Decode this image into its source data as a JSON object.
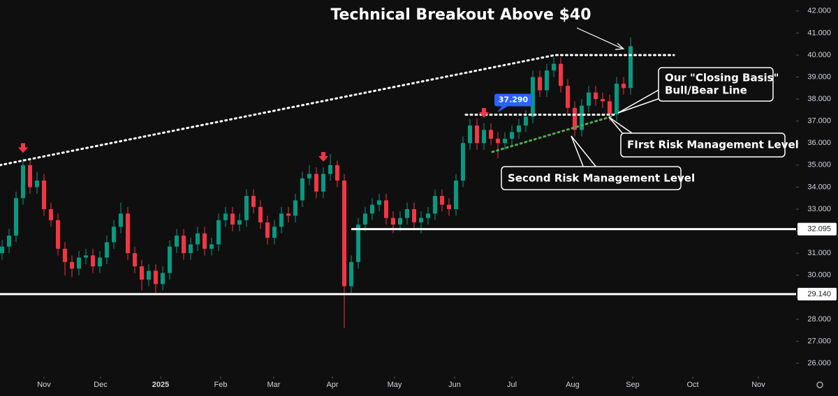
{
  "chart_data": {
    "type": "candlestick",
    "title": "Technical Breakout Above $40",
    "up_color": "#089981",
    "down_color": "#f23645",
    "arrow_color": "#f23645",
    "xlim": [
      -0.3,
      113.7
    ],
    "xticks": [
      {
        "value": 6.0,
        "label": "Nov"
      },
      {
        "value": 14.1,
        "label": "Dec"
      },
      {
        "value": 22.7,
        "label": "2025"
      },
      {
        "value": 31.3,
        "label": "Feb"
      },
      {
        "value": 38.9,
        "label": "Mar"
      },
      {
        "value": 47.3,
        "label": "Apr"
      },
      {
        "value": 56.2,
        "label": "May"
      },
      {
        "value": 64.8,
        "label": "Jun"
      },
      {
        "value": 73.0,
        "label": "Jul"
      },
      {
        "value": 81.7,
        "label": "Aug"
      },
      {
        "value": 90.3,
        "label": "Sep"
      },
      {
        "value": 98.9,
        "label": "Oct"
      },
      {
        "value": 108.3,
        "label": "Nov"
      }
    ],
    "ylim": [
      25.4,
      42.5
    ],
    "yticks": [
      {
        "value": 26,
        "label": "26.000"
      },
      {
        "value": 27,
        "label": "27.000"
      },
      {
        "value": 28,
        "label": "28.000"
      },
      {
        "value": 29,
        "label": "29.000"
      },
      {
        "value": 30,
        "label": "30.000"
      },
      {
        "value": 31,
        "label": "31.000"
      },
      {
        "value": 32,
        "label": "32.000"
      },
      {
        "value": 33,
        "label": "33.000"
      },
      {
        "value": 34,
        "label": "34.000"
      },
      {
        "value": 35,
        "label": "35.000"
      },
      {
        "value": 36,
        "label": "36.000"
      },
      {
        "value": 37,
        "label": "37.000"
      },
      {
        "value": 38,
        "label": "38.000"
      },
      {
        "value": 39,
        "label": "39.000"
      },
      {
        "value": 40,
        "label": "40.000"
      },
      {
        "value": 41,
        "label": "41.000"
      },
      {
        "value": 42,
        "label": "42.000"
      }
    ],
    "open": [
      31.0,
      31.3,
      31.8,
      33.5,
      35.0,
      34.0,
      34.3,
      33.0,
      32.5,
      31.2,
      30.6,
      30.3,
      30.8,
      30.9,
      30.4,
      30.8,
      31.5,
      32.2,
      32.8,
      31.0,
      30.4,
      29.8,
      30.2,
      29.6,
      30.1,
      31.3,
      31.8,
      31.0,
      31.4,
      31.9,
      31.2,
      31.4,
      32.5,
      32.8,
      32.3,
      32.5,
      33.6,
      33.1,
      32.4,
      31.7,
      32.2,
      32.8,
      32.7,
      33.4,
      34.4,
      34.6,
      33.8,
      34.6,
      35.0,
      34.3,
      29.5,
      30.6,
      32.3,
      32.8,
      33.2,
      33.4,
      32.6,
      32.3,
      32.6,
      33.0,
      32.4,
      32.6,
      32.8,
      33.6,
      33.2,
      33.0,
      34.3,
      36.0,
      36.8,
      36.0,
      36.6,
      36.2,
      36.0,
      36.2,
      36.5,
      36.8,
      37.2,
      39.0,
      38.4,
      39.3,
      39.6,
      38.6,
      37.6,
      36.6,
      37.7,
      38.3,
      38.0,
      37.9,
      37.3,
      38.7,
      38.5
    ],
    "high": [
      31.6,
      32.1,
      33.8,
      35.3,
      35.3,
      34.7,
      34.6,
      33.3,
      32.8,
      31.5,
      30.9,
      31.1,
      31.2,
      31.2,
      31.1,
      31.8,
      32.5,
      33.3,
      33.1,
      31.3,
      30.7,
      30.5,
      30.5,
      30.4,
      31.6,
      32.1,
      32.1,
      31.7,
      32.2,
      32.2,
      31.7,
      32.8,
      33.1,
      33.1,
      32.8,
      33.9,
      33.9,
      33.4,
      32.7,
      32.5,
      33.1,
      33.1,
      33.7,
      34.7,
      35.0,
      34.9,
      34.9,
      35.5,
      35.2,
      34.6,
      30.9,
      32.6,
      33.1,
      33.5,
      33.7,
      33.7,
      32.9,
      32.9,
      33.3,
      33.3,
      32.9,
      33.1,
      33.9,
      33.9,
      33.5,
      34.6,
      36.3,
      37.1,
      37.1,
      36.9,
      36.9,
      36.5,
      36.5,
      36.8,
      37.1,
      37.5,
      39.3,
      39.3,
      39.6,
      39.9,
      39.9,
      38.9,
      37.9,
      38.0,
      38.6,
      38.6,
      38.3,
      38.2,
      39.0,
      39.0,
      40.8
    ],
    "low": [
      30.7,
      31.0,
      31.5,
      33.2,
      33.7,
      33.7,
      32.7,
      32.2,
      30.9,
      30.0,
      29.9,
      30.0,
      30.5,
      30.1,
      30.1,
      30.5,
      31.2,
      31.9,
      30.7,
      30.1,
      29.3,
      29.5,
      29.2,
      29.3,
      29.8,
      31.0,
      30.7,
      30.7,
      31.1,
      30.9,
      30.9,
      31.1,
      32.2,
      32.0,
      32.0,
      32.2,
      32.8,
      32.1,
      31.4,
      31.4,
      31.9,
      32.4,
      32.4,
      33.1,
      34.1,
      33.5,
      33.5,
      34.3,
      34.0,
      27.6,
      29.2,
      30.3,
      32.0,
      32.5,
      32.9,
      32.3,
      31.9,
      32.0,
      32.3,
      32.1,
      31.9,
      32.3,
      32.5,
      32.9,
      32.7,
      32.7,
      34.0,
      35.7,
      35.7,
      35.7,
      35.9,
      35.3,
      35.7,
      35.9,
      36.2,
      36.5,
      36.9,
      38.1,
      38.1,
      39.0,
      38.3,
      37.3,
      36.3,
      36.3,
      37.4,
      37.7,
      37.6,
      37.0,
      37.0,
      38.2,
      38.2
    ],
    "close": [
      31.3,
      31.8,
      33.5,
      35.0,
      34.0,
      34.3,
      33.0,
      32.5,
      31.2,
      30.6,
      30.3,
      30.8,
      30.9,
      30.4,
      30.8,
      31.5,
      32.2,
      32.8,
      31.0,
      30.4,
      29.8,
      30.2,
      29.6,
      30.1,
      31.3,
      31.8,
      31.0,
      31.4,
      31.9,
      31.2,
      31.4,
      32.5,
      32.8,
      32.3,
      32.5,
      33.6,
      33.1,
      32.4,
      31.7,
      32.2,
      32.8,
      32.7,
      33.4,
      34.4,
      34.6,
      33.8,
      34.6,
      35.0,
      34.3,
      29.5,
      30.6,
      32.3,
      32.8,
      33.2,
      33.4,
      32.6,
      32.3,
      32.6,
      33.0,
      32.4,
      32.6,
      32.8,
      33.6,
      33.2,
      33.0,
      34.3,
      36.0,
      36.8,
      36.0,
      36.6,
      36.2,
      36.0,
      36.2,
      36.5,
      36.8,
      37.2,
      39.0,
      38.4,
      39.3,
      39.6,
      38.6,
      37.6,
      36.6,
      37.7,
      38.3,
      38.0,
      37.9,
      37.3,
      38.7,
      38.5,
      40.4
    ],
    "levels": [
      {
        "value": 32.095,
        "label": "32.095",
        "from": 50.0
      },
      {
        "value": 29.14,
        "label": "29.140",
        "from": -0.3
      }
    ],
    "trendlines": [
      {
        "x": [
          -0.3,
          79.2,
          96.2
        ],
        "y": [
          35.0,
          40.0,
          40.0
        ],
        "color": "#ffffff"
      },
      {
        "x": [
          66.4,
          87.9
        ],
        "y": [
          37.29,
          37.29
        ],
        "color": "#ffffff"
      },
      {
        "x": [
          70.2,
          87.2
        ],
        "y": [
          35.6,
          37.2
        ],
        "color": "#4caf50"
      }
    ],
    "price_tag": {
      "value": 37.29,
      "label": "37.290",
      "color": "#2962ff"
    },
    "signal_arrows": [
      3,
      46,
      69
    ],
    "annotations": {
      "closing_basis": [
        "Our \"Closing Basis\"",
        "Bull/Bear Line"
      ],
      "first_risk": "FIrst Risk Management Level",
      "second_risk": "Second Risk Management Level"
    }
  }
}
